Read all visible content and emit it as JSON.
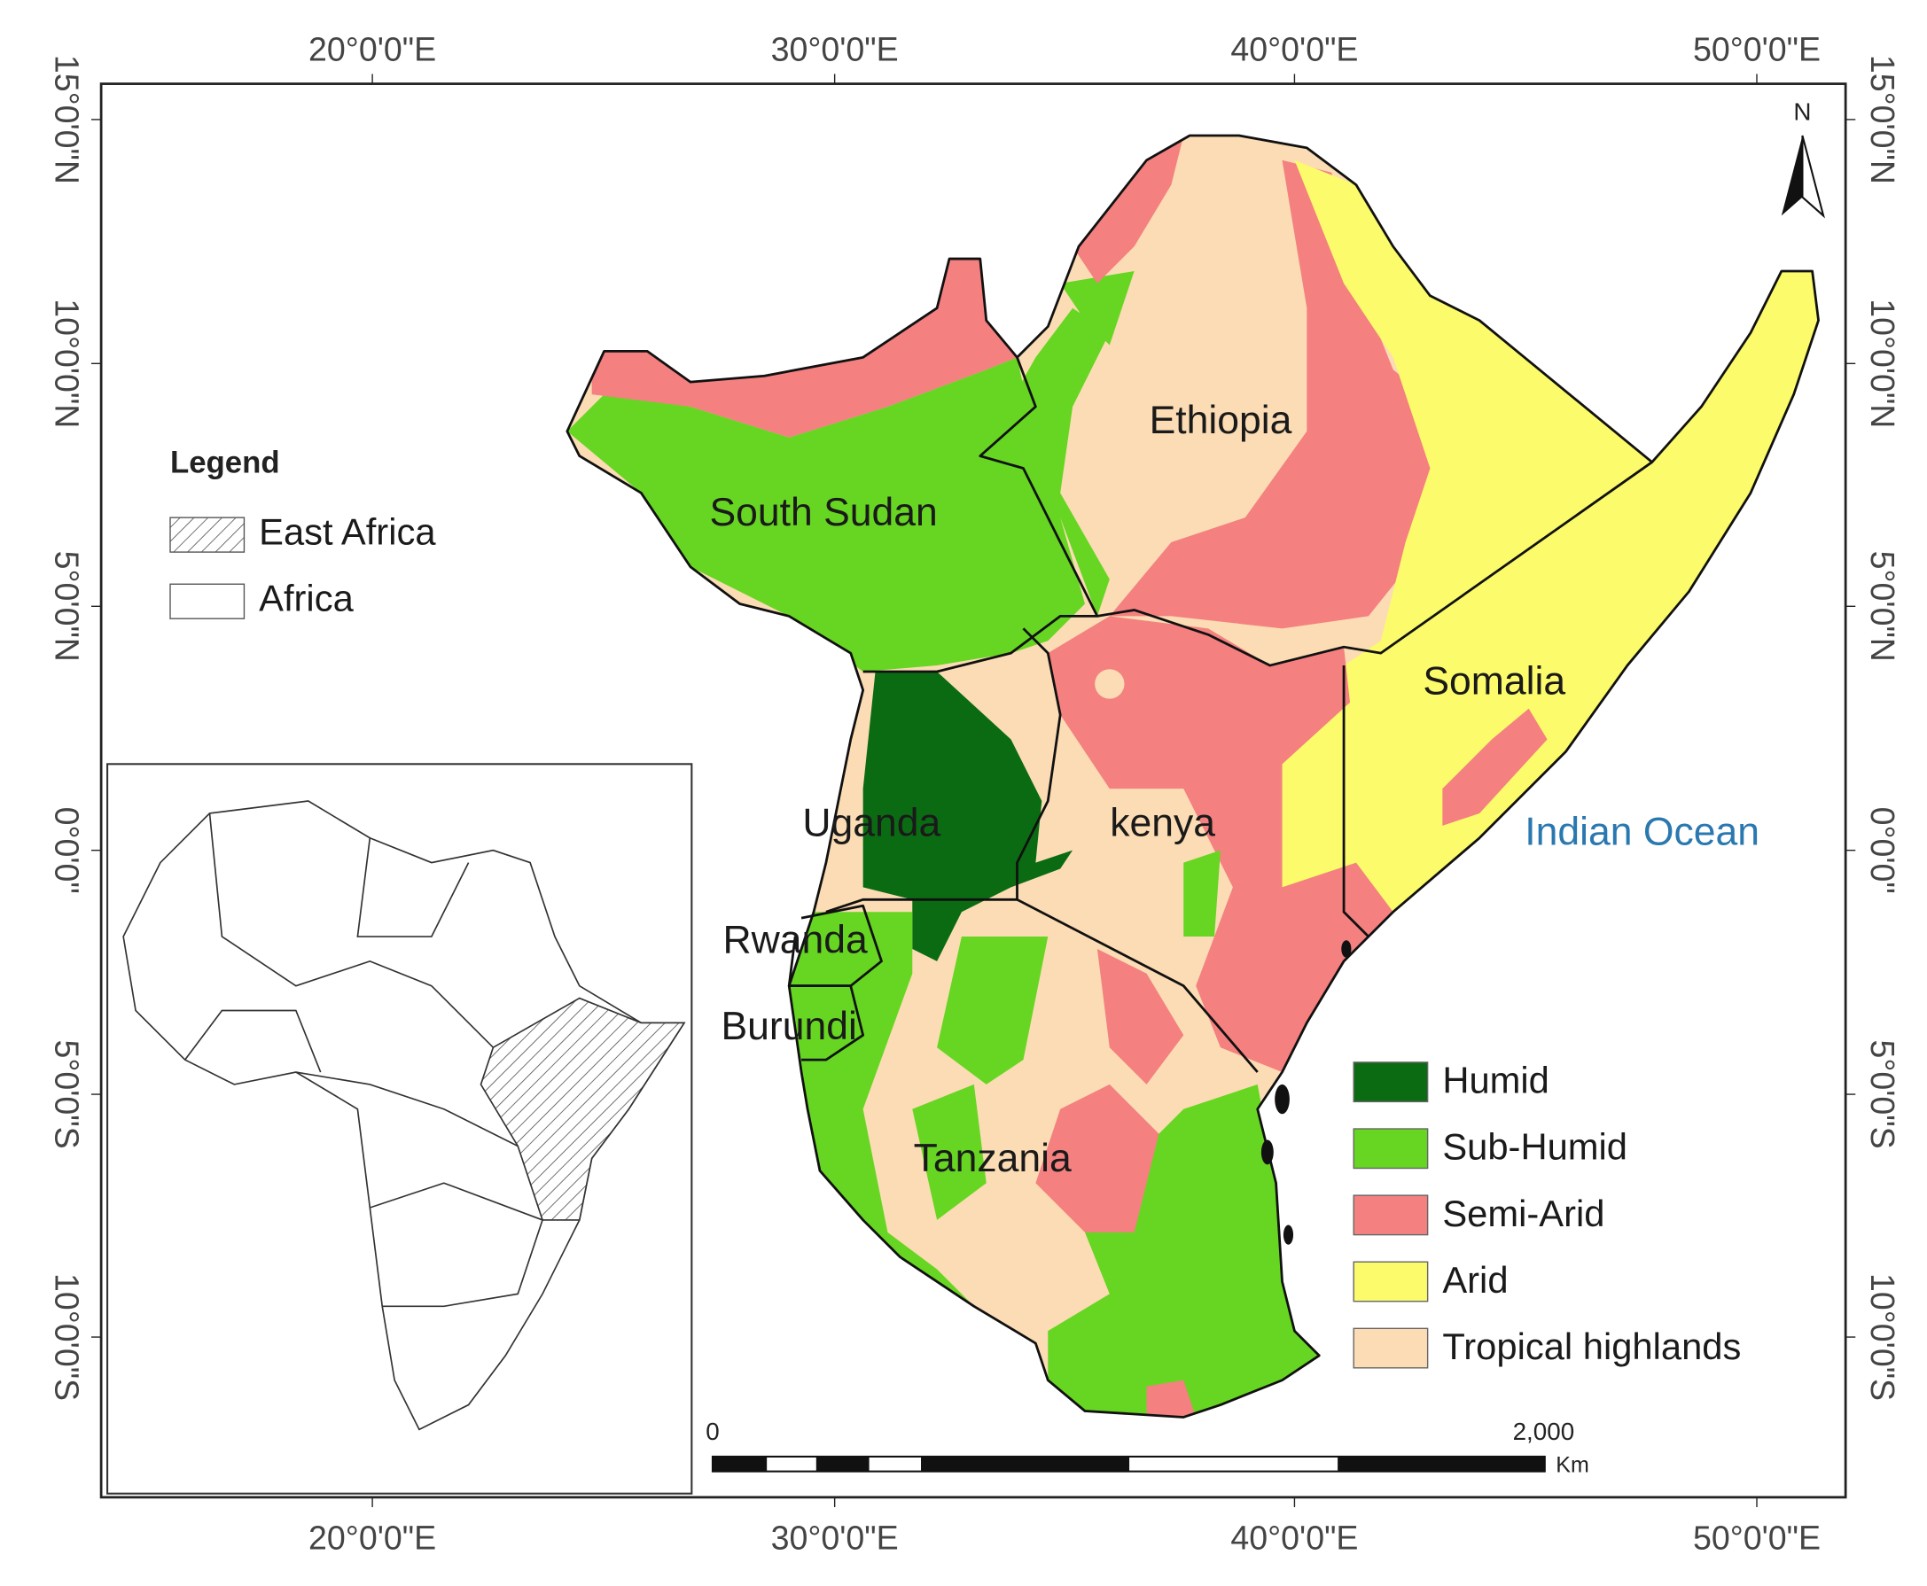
{
  "map": {
    "longitude_labels": [
      "20°0'0\"E",
      "30°0'0\"E",
      "40°0'0\"E",
      "50°0'0\"E"
    ],
    "latitude_labels": [
      "15°0'0\"N",
      "10°0'0\"N",
      "5°0'0\"N",
      "0°0'0\"",
      "5°0'0\"S",
      "10°0'0\"S"
    ],
    "legend": {
      "title": "Legend",
      "items": [
        "East Africa",
        "Africa"
      ]
    },
    "countries": [
      "South Sudan",
      "Ethiopia",
      "Somalia",
      "Uganda",
      "kenya",
      "Rwanda",
      "Burundi",
      "Tanzania"
    ],
    "ocean_label": "Indian Ocean",
    "climate_legend": [
      "Humid",
      "Sub-Humid",
      "Semi-Arid",
      "Arid",
      "Tropical highlands"
    ],
    "north_label": "N",
    "scale_bar": {
      "start": "0",
      "end": "2,000",
      "unit": "Km"
    }
  }
}
